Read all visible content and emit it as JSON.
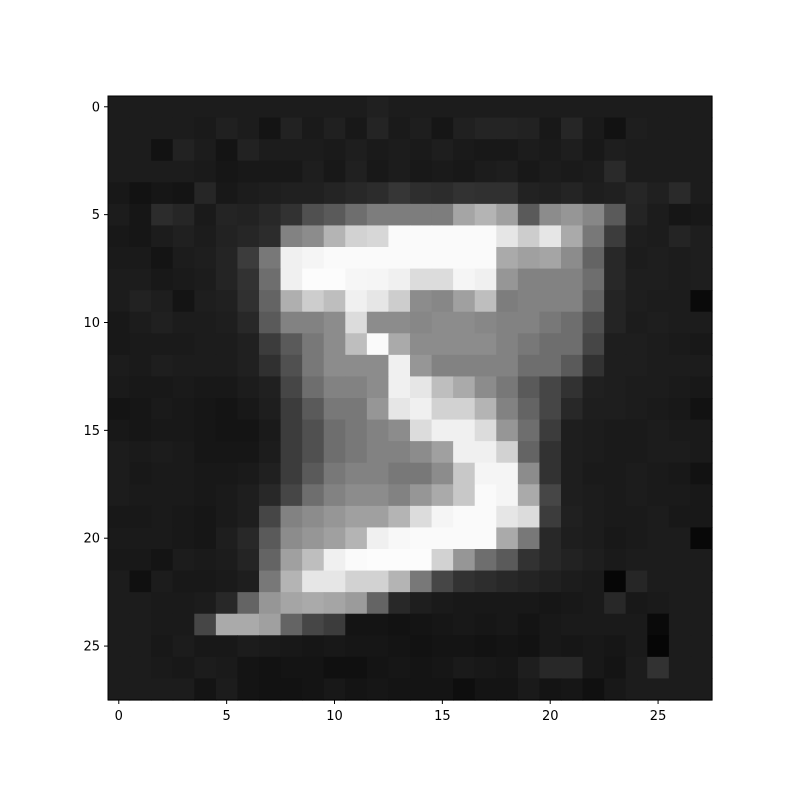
{
  "chart_data": {
    "type": "heatmap",
    "colormap": "gray",
    "title": "",
    "xlabel": "",
    "ylabel": "",
    "rows": 28,
    "cols": 28,
    "vmin": 0,
    "vmax": 255,
    "x_ticks": [
      "0",
      "5",
      "10",
      "15",
      "20",
      "25"
    ],
    "y_ticks": [
      "0",
      "5",
      "10",
      "15",
      "20",
      "25"
    ],
    "values": [
      [
        28,
        28,
        28,
        28,
        28,
        28,
        28,
        28,
        28,
        28,
        28,
        28,
        32,
        28,
        28,
        28,
        28,
        28,
        28,
        28,
        28,
        28,
        28,
        28,
        28,
        28,
        28,
        28
      ],
      [
        28,
        28,
        28,
        28,
        26,
        32,
        28,
        20,
        34,
        26,
        32,
        24,
        36,
        26,
        30,
        22,
        32,
        36,
        36,
        34,
        24,
        38,
        26,
        18,
        30,
        28,
        28,
        28
      ],
      [
        28,
        28,
        18,
        34,
        28,
        20,
        34,
        28,
        28,
        28,
        26,
        30,
        26,
        28,
        26,
        30,
        26,
        24,
        24,
        28,
        26,
        30,
        24,
        30,
        28,
        28,
        28,
        28
      ],
      [
        28,
        28,
        28,
        28,
        26,
        22,
        24,
        24,
        24,
        30,
        24,
        32,
        24,
        28,
        24,
        26,
        24,
        28,
        30,
        24,
        28,
        26,
        28,
        42,
        28,
        28,
        28,
        28
      ],
      [
        24,
        18,
        22,
        20,
        38,
        24,
        28,
        30,
        32,
        32,
        36,
        40,
        44,
        54,
        46,
        44,
        50,
        48,
        48,
        34,
        32,
        36,
        30,
        32,
        38,
        32,
        42,
        28
      ],
      [
        28,
        22,
        44,
        38,
        26,
        36,
        34,
        40,
        50,
        80,
        90,
        110,
        125,
        125,
        125,
        125,
        165,
        180,
        160,
        90,
        140,
        150,
        135,
        90,
        36,
        28,
        22,
        24
      ],
      [
        24,
        22,
        28,
        32,
        28,
        34,
        38,
        44,
        130,
        140,
        180,
        210,
        215,
        250,
        250,
        250,
        250,
        250,
        230,
        205,
        230,
        170,
        120,
        60,
        30,
        28,
        36,
        30
      ],
      [
        26,
        26,
        20,
        28,
        30,
        36,
        60,
        120,
        240,
        245,
        250,
        250,
        250,
        250,
        250,
        250,
        250,
        250,
        170,
        160,
        165,
        140,
        100,
        40,
        28,
        30,
        28,
        30
      ],
      [
        28,
        28,
        24,
        26,
        28,
        36,
        50,
        110,
        240,
        252,
        252,
        246,
        245,
        240,
        220,
        220,
        245,
        240,
        150,
        130,
        130,
        130,
        110,
        40,
        30,
        30,
        28,
        30
      ],
      [
        28,
        34,
        30,
        20,
        30,
        32,
        48,
        100,
        175,
        205,
        190,
        240,
        230,
        205,
        140,
        135,
        160,
        190,
        125,
        130,
        130,
        130,
        100,
        36,
        30,
        28,
        28,
        10
      ],
      [
        24,
        28,
        32,
        28,
        28,
        30,
        40,
        90,
        130,
        130,
        140,
        220,
        140,
        140,
        135,
        140,
        140,
        135,
        130,
        130,
        120,
        110,
        80,
        36,
        28,
        30,
        28,
        28
      ],
      [
        24,
        26,
        26,
        26,
        28,
        28,
        32,
        60,
        90,
        120,
        140,
        190,
        250,
        170,
        140,
        140,
        140,
        140,
        130,
        120,
        110,
        110,
        70,
        30,
        30,
        28,
        26,
        24
      ],
      [
        28,
        26,
        30,
        28,
        28,
        28,
        32,
        48,
        80,
        120,
        140,
        140,
        140,
        240,
        150,
        130,
        130,
        130,
        130,
        110,
        110,
        90,
        50,
        30,
        30,
        28,
        28,
        28
      ],
      [
        26,
        24,
        24,
        26,
        24,
        24,
        28,
        32,
        70,
        110,
        130,
        130,
        140,
        240,
        230,
        190,
        170,
        140,
        120,
        90,
        70,
        50,
        32,
        30,
        28,
        28,
        26,
        24
      ],
      [
        20,
        22,
        26,
        24,
        22,
        20,
        24,
        30,
        60,
        90,
        120,
        120,
        150,
        230,
        240,
        210,
        210,
        180,
        130,
        100,
        70,
        40,
        30,
        30,
        28,
        26,
        24,
        18
      ],
      [
        24,
        22,
        24,
        24,
        22,
        20,
        20,
        26,
        60,
        80,
        110,
        120,
        130,
        140,
        220,
        240,
        240,
        220,
        150,
        110,
        60,
        30,
        28,
        26,
        26,
        28,
        26,
        26
      ],
      [
        28,
        26,
        28,
        26,
        22,
        22,
        22,
        28,
        60,
        80,
        110,
        120,
        130,
        130,
        140,
        160,
        240,
        240,
        210,
        100,
        50,
        30,
        28,
        26,
        26,
        28,
        28,
        26
      ],
      [
        28,
        24,
        26,
        26,
        24,
        24,
        26,
        32,
        60,
        90,
        120,
        130,
        130,
        120,
        120,
        140,
        200,
        245,
        245,
        140,
        50,
        30,
        26,
        26,
        28,
        26,
        24,
        18
      ],
      [
        28,
        26,
        26,
        26,
        24,
        26,
        30,
        40,
        70,
        110,
        130,
        140,
        140,
        130,
        150,
        170,
        200,
        250,
        245,
        170,
        70,
        30,
        28,
        26,
        28,
        26,
        26,
        24
      ],
      [
        24,
        24,
        26,
        24,
        22,
        26,
        30,
        70,
        130,
        140,
        150,
        160,
        160,
        180,
        220,
        245,
        250,
        250,
        230,
        220,
        60,
        32,
        28,
        26,
        26,
        28,
        24,
        24
      ],
      [
        26,
        26,
        26,
        24,
        22,
        30,
        40,
        90,
        140,
        150,
        160,
        180,
        240,
        248,
        250,
        250,
        250,
        250,
        170,
        120,
        40,
        30,
        28,
        24,
        26,
        28,
        28,
        8
      ],
      [
        24,
        24,
        20,
        28,
        26,
        28,
        36,
        100,
        160,
        190,
        240,
        250,
        252,
        252,
        252,
        210,
        150,
        110,
        90,
        50,
        40,
        34,
        30,
        26,
        28,
        28,
        28,
        28
      ],
      [
        28,
        16,
        28,
        24,
        24,
        26,
        30,
        120,
        180,
        230,
        230,
        210,
        210,
        180,
        120,
        70,
        50,
        45,
        40,
        36,
        32,
        28,
        26,
        6,
        38,
        28,
        28,
        28
      ],
      [
        28,
        28,
        26,
        26,
        28,
        40,
        100,
        150,
        165,
        170,
        165,
        155,
        100,
        40,
        30,
        26,
        24,
        24,
        24,
        24,
        22,
        24,
        26,
        40,
        24,
        26,
        28,
        28
      ],
      [
        28,
        28,
        26,
        26,
        70,
        170,
        170,
        160,
        100,
        70,
        60,
        20,
        20,
        18,
        20,
        22,
        24,
        22,
        24,
        20,
        24,
        26,
        26,
        26,
        26,
        10,
        28,
        28
      ],
      [
        28,
        28,
        24,
        28,
        24,
        24,
        28,
        26,
        24,
        22,
        24,
        22,
        22,
        20,
        18,
        20,
        20,
        18,
        20,
        18,
        24,
        22,
        24,
        22,
        26,
        6,
        28,
        28
      ],
      [
        28,
        28,
        26,
        24,
        28,
        26,
        20,
        18,
        20,
        20,
        16,
        16,
        20,
        22,
        20,
        22,
        26,
        24,
        22,
        30,
        40,
        40,
        24,
        20,
        28,
        50,
        28,
        28
      ],
      [
        28,
        28,
        28,
        28,
        20,
        28,
        20,
        18,
        18,
        20,
        24,
        20,
        22,
        20,
        20,
        20,
        14,
        20,
        20,
        26,
        20,
        22,
        16,
        24,
        28,
        28,
        28,
        28
      ]
    ]
  }
}
